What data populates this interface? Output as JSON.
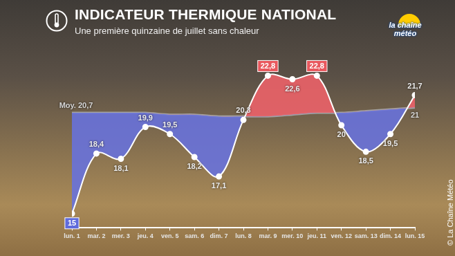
{
  "title": "INDICATEUR THERMIQUE NATIONAL",
  "subtitle": "Une première quinzaine de juillet sans chaleur",
  "logo": "la chaîne météo",
  "credit": "© La Chaîne Météo",
  "chart_data": {
    "type": "line",
    "categories": [
      "lun. 1",
      "mar. 2",
      "mer. 3",
      "jeu. 4",
      "ven. 5",
      "sam. 6",
      "dim. 7",
      "lun. 8",
      "mar. 9",
      "mer. 10",
      "jeu. 11",
      "ven. 12",
      "sam. 13",
      "dim. 14",
      "lun. 15"
    ],
    "series": [
      {
        "color": "#ffffff",
        "marker": "circle",
        "values": [
          15,
          18.4,
          18.1,
          19.9,
          19.5,
          18.2,
          17.1,
          20.3,
          22.8,
          22.6,
          22.8,
          20,
          18.5,
          19.5,
          21.7
        ],
        "value_labels": [
          "15",
          "18,4",
          "18,1",
          "19,9",
          "19,5",
          "18,2",
          "17,1",
          "20,3",
          "22,8",
          "22,6",
          "22,8",
          "20",
          "18,5",
          "19,5",
          "21,7"
        ]
      },
      {
        "color": "#a3a3a3",
        "values": [
          20.7,
          20.7,
          20.7,
          20.7,
          20.6,
          20.6,
          20.5,
          20.5,
          20.5,
          20.6,
          20.7,
          20.7,
          20.8,
          20.9,
          21
        ],
        "value_labels": [
          "Moy. 20,7",
          null,
          null,
          null,
          null,
          null,
          null,
          null,
          null,
          null,
          null,
          null,
          null,
          null,
          "21"
        ]
      }
    ],
    "ylim": [
      14.2,
      24.5
    ],
    "grid": false,
    "tick_labels": "x",
    "data_labels": true
  }
}
